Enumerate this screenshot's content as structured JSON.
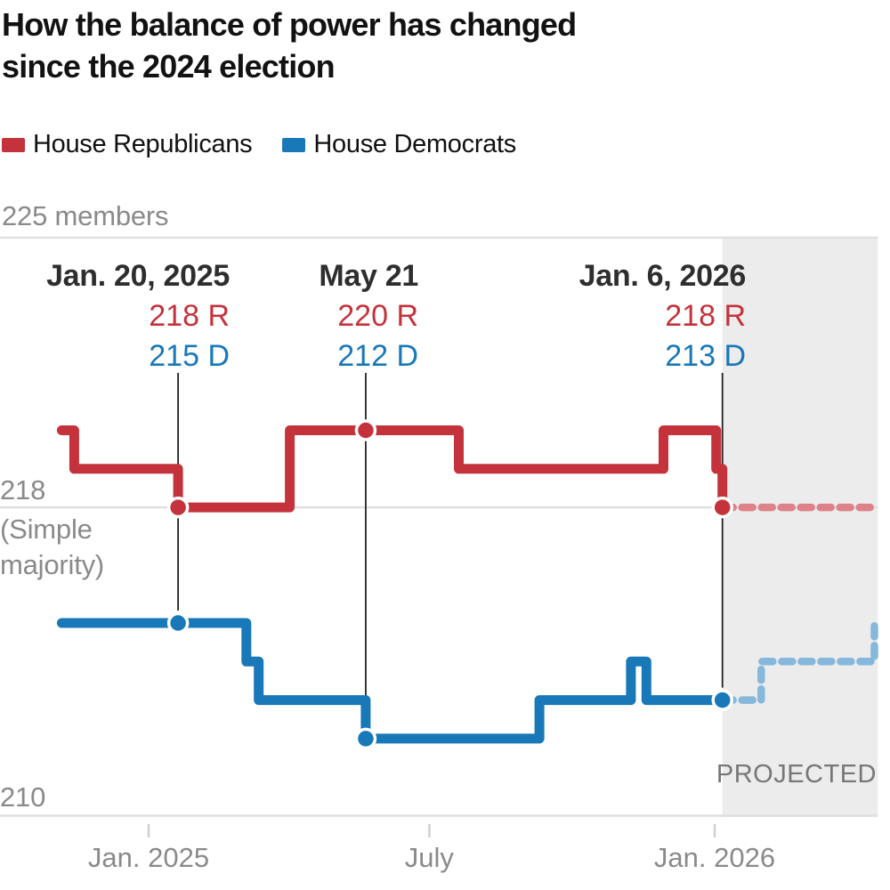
{
  "title": "How the balance of power has changed since the 2024 election",
  "legend": {
    "republicans": "House Republicans",
    "democrats": "House Democrats"
  },
  "colors": {
    "republican": "#c4333c",
    "republican_projected": "#de8289",
    "democrat": "#1878b8",
    "democrat_projected": "#85b8dc",
    "gridline": "#e0e0e0",
    "projection_band": "#ececec",
    "annotation_line": "#222222",
    "axis_text": "#8a8a8a"
  },
  "chart_data": {
    "type": "step-line",
    "y_unit": "members",
    "y_domain": [
      210,
      225
    ],
    "x_domain": [
      "2024-11-06",
      "2026-04-15"
    ],
    "projection_start": "2026-01-06",
    "projection_label": "PROJECTED",
    "y_gridlines": [
      {
        "value": 225,
        "label": "225 members"
      },
      {
        "value": 218,
        "label": "218",
        "sublabel": "(Simple majority)"
      },
      {
        "value": 210,
        "label": "210"
      }
    ],
    "x_ticks": [
      {
        "date": "2025-01-01",
        "label": "Jan. 2025"
      },
      {
        "date": "2025-07-01",
        "label": "July"
      },
      {
        "date": "2026-01-01",
        "label": "Jan. 2026"
      }
    ],
    "series": [
      {
        "name": "House Republicans",
        "color": "#c4333c",
        "dash_color": "#de8289",
        "solid": [
          [
            "2024-11-06",
            220
          ],
          [
            "2024-11-14",
            219
          ],
          [
            "2025-01-20",
            218
          ],
          [
            "2025-04-02",
            220
          ],
          [
            "2025-07-20",
            219
          ],
          [
            "2025-11-29",
            220
          ],
          [
            "2026-01-02",
            219
          ],
          [
            "2026-01-06",
            218
          ]
        ],
        "projected": [
          [
            "2026-01-06",
            218
          ],
          [
            "2026-04-15",
            218
          ]
        ]
      },
      {
        "name": "House Democrats",
        "color": "#1878b8",
        "dash_color": "#85b8dc",
        "solid": [
          [
            "2024-11-06",
            215
          ],
          [
            "2025-03-05",
            214
          ],
          [
            "2025-03-13",
            213
          ],
          [
            "2025-05-21",
            212
          ],
          [
            "2025-09-10",
            213
          ],
          [
            "2025-11-08",
            214
          ],
          [
            "2025-11-18",
            213
          ],
          [
            "2026-01-06",
            213
          ]
        ],
        "projected": [
          [
            "2026-01-06",
            213
          ],
          [
            "2026-01-31",
            214
          ],
          [
            "2026-04-14",
            215
          ]
        ]
      }
    ],
    "annotations": [
      {
        "date": "2025-01-20",
        "date_label": "Jan. 20, 2025",
        "r_value": 218,
        "r_label": "218 R",
        "d_value": 215,
        "d_label": "215 D"
      },
      {
        "date": "2025-05-21",
        "date_label": "May 21",
        "r_value": 220,
        "r_label": "220 R",
        "d_value": 212,
        "d_label": "212 D"
      },
      {
        "date": "2026-01-06",
        "date_label": "Jan. 6, 2026",
        "r_value": 218,
        "r_label": "218 R",
        "d_value": 213,
        "d_label": "213 D"
      }
    ]
  }
}
